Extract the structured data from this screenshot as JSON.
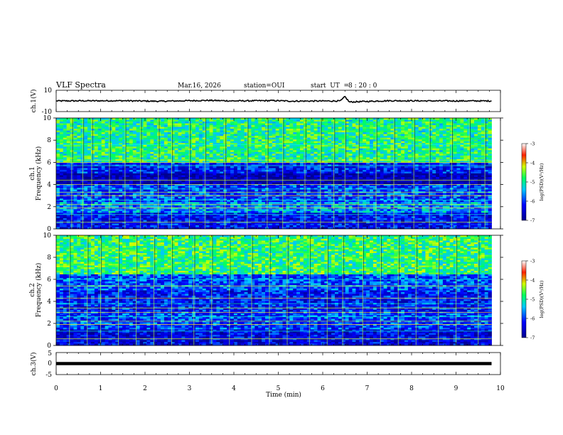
{
  "header": {
    "title": "VLF Spectra",
    "date": "Mar.16, 2026",
    "station": "station=OUI",
    "start_ut_label": "start  UT  =",
    "start_ut_value": "8 : 20 : 0"
  },
  "chart_data": [
    {
      "type": "line",
      "name": "ch1-waveform",
      "ylabel": "ch.1(V)",
      "ylim": [
        -10,
        10
      ],
      "yticks": [
        "10",
        "-10"
      ],
      "x": [
        0,
        1.5,
        2.3,
        3.4,
        4.0,
        4.9,
        5.3,
        6.4,
        6.5,
        6.6,
        7.5,
        8.5,
        9.8
      ],
      "y": [
        0,
        0.2,
        -0.3,
        0.5,
        0,
        0.3,
        -0.2,
        0,
        4,
        -1,
        0.2,
        0,
        0
      ],
      "xlim": [
        0,
        10
      ]
    },
    {
      "type": "heatmap",
      "name": "ch1-spectrogram",
      "title": "ch.1",
      "ylabel": "Frequency (kHz)",
      "ylim": [
        0,
        10
      ],
      "yticks": [
        "10",
        "8",
        "6",
        "4",
        "2",
        "0"
      ],
      "xlim": [
        0,
        9.8
      ],
      "colorbar": {
        "label": "log(PSD)(V²/Hz)",
        "range": [
          -7,
          -3
        ],
        "ticks": [
          "-3",
          "-4",
          "-5",
          "-6",
          "-7"
        ]
      },
      "bands": [
        {
          "f_low": 6.0,
          "f_high": 10.0,
          "log_psd": -4.9
        },
        {
          "f_low": 5.0,
          "f_high": 6.0,
          "log_psd": -6.2
        },
        {
          "f_low": 4.0,
          "f_high": 5.0,
          "log_psd": -6.8
        },
        {
          "f_low": 2.5,
          "f_high": 4.0,
          "log_psd": -6.0
        },
        {
          "f_low": 1.5,
          "f_high": 2.5,
          "log_psd": -5.6
        },
        {
          "f_low": 0.0,
          "f_high": 1.5,
          "log_psd": -6.3
        }
      ],
      "tones_khz": [
        0.6,
        1.3,
        1.9,
        2.2,
        2.6,
        3.0,
        3.3,
        3.6,
        4.0,
        4.4,
        5.7,
        6.0,
        6.2,
        7.6
      ],
      "impulses_min": [
        0.35,
        0.6,
        0.8,
        1.2,
        1.55,
        1.9,
        2.3,
        2.6,
        3.0,
        3.35,
        3.8,
        4.3,
        4.75,
        5.1,
        5.6,
        5.95,
        6.25,
        6.5,
        6.8,
        7.2,
        7.6,
        8.05,
        8.4,
        8.9,
        9.3,
        9.65
      ]
    },
    {
      "type": "heatmap",
      "name": "ch2-spectrogram",
      "title": "ch.2",
      "ylabel": "Frequency (kHz)",
      "ylim": [
        0,
        10
      ],
      "yticks": [
        "10",
        "8",
        "6",
        "4",
        "2",
        "0"
      ],
      "xlim": [
        0,
        9.8
      ],
      "colorbar": {
        "label": "log(PSD)(V²/Hz)",
        "range": [
          -7,
          -3
        ],
        "ticks": [
          "-3",
          "-4",
          "-5",
          "-6",
          "-7"
        ]
      },
      "bands": [
        {
          "f_low": 6.5,
          "f_high": 10.0,
          "log_psd": -4.8
        },
        {
          "f_low": 5.0,
          "f_high": 6.5,
          "log_psd": -5.9
        },
        {
          "f_low": 3.0,
          "f_high": 5.0,
          "log_psd": -6.2
        },
        {
          "f_low": 1.5,
          "f_high": 3.0,
          "log_psd": -6.0
        },
        {
          "f_low": 0.0,
          "f_high": 1.5,
          "log_psd": -6.4
        }
      ],
      "tones_khz": [
        0.6,
        1.3,
        1.9,
        2.2,
        2.6,
        3.0,
        3.4,
        3.8,
        4.3,
        5.4,
        6.0
      ],
      "impulses_min": [
        0.3,
        0.7,
        1.0,
        1.4,
        1.8,
        2.2,
        2.6,
        3.1,
        3.5,
        3.9,
        4.4,
        4.8,
        5.2,
        5.7,
        6.1,
        6.45,
        6.9,
        7.3,
        7.7,
        8.1,
        8.6,
        9.0,
        9.5
      ]
    },
    {
      "type": "line",
      "name": "ch3-waveform",
      "ylabel": "ch.3(V)",
      "ylim": [
        -5,
        5
      ],
      "yticks": [
        "5",
        "0",
        "-5"
      ],
      "x": [
        0,
        9.8
      ],
      "y": [
        0,
        0
      ],
      "xlim": [
        0,
        10
      ],
      "xlabel": "Time (min)",
      "xticks": [
        "0",
        "1",
        "2",
        "3",
        "4",
        "5",
        "6",
        "7",
        "8",
        "9",
        "10"
      ]
    }
  ]
}
